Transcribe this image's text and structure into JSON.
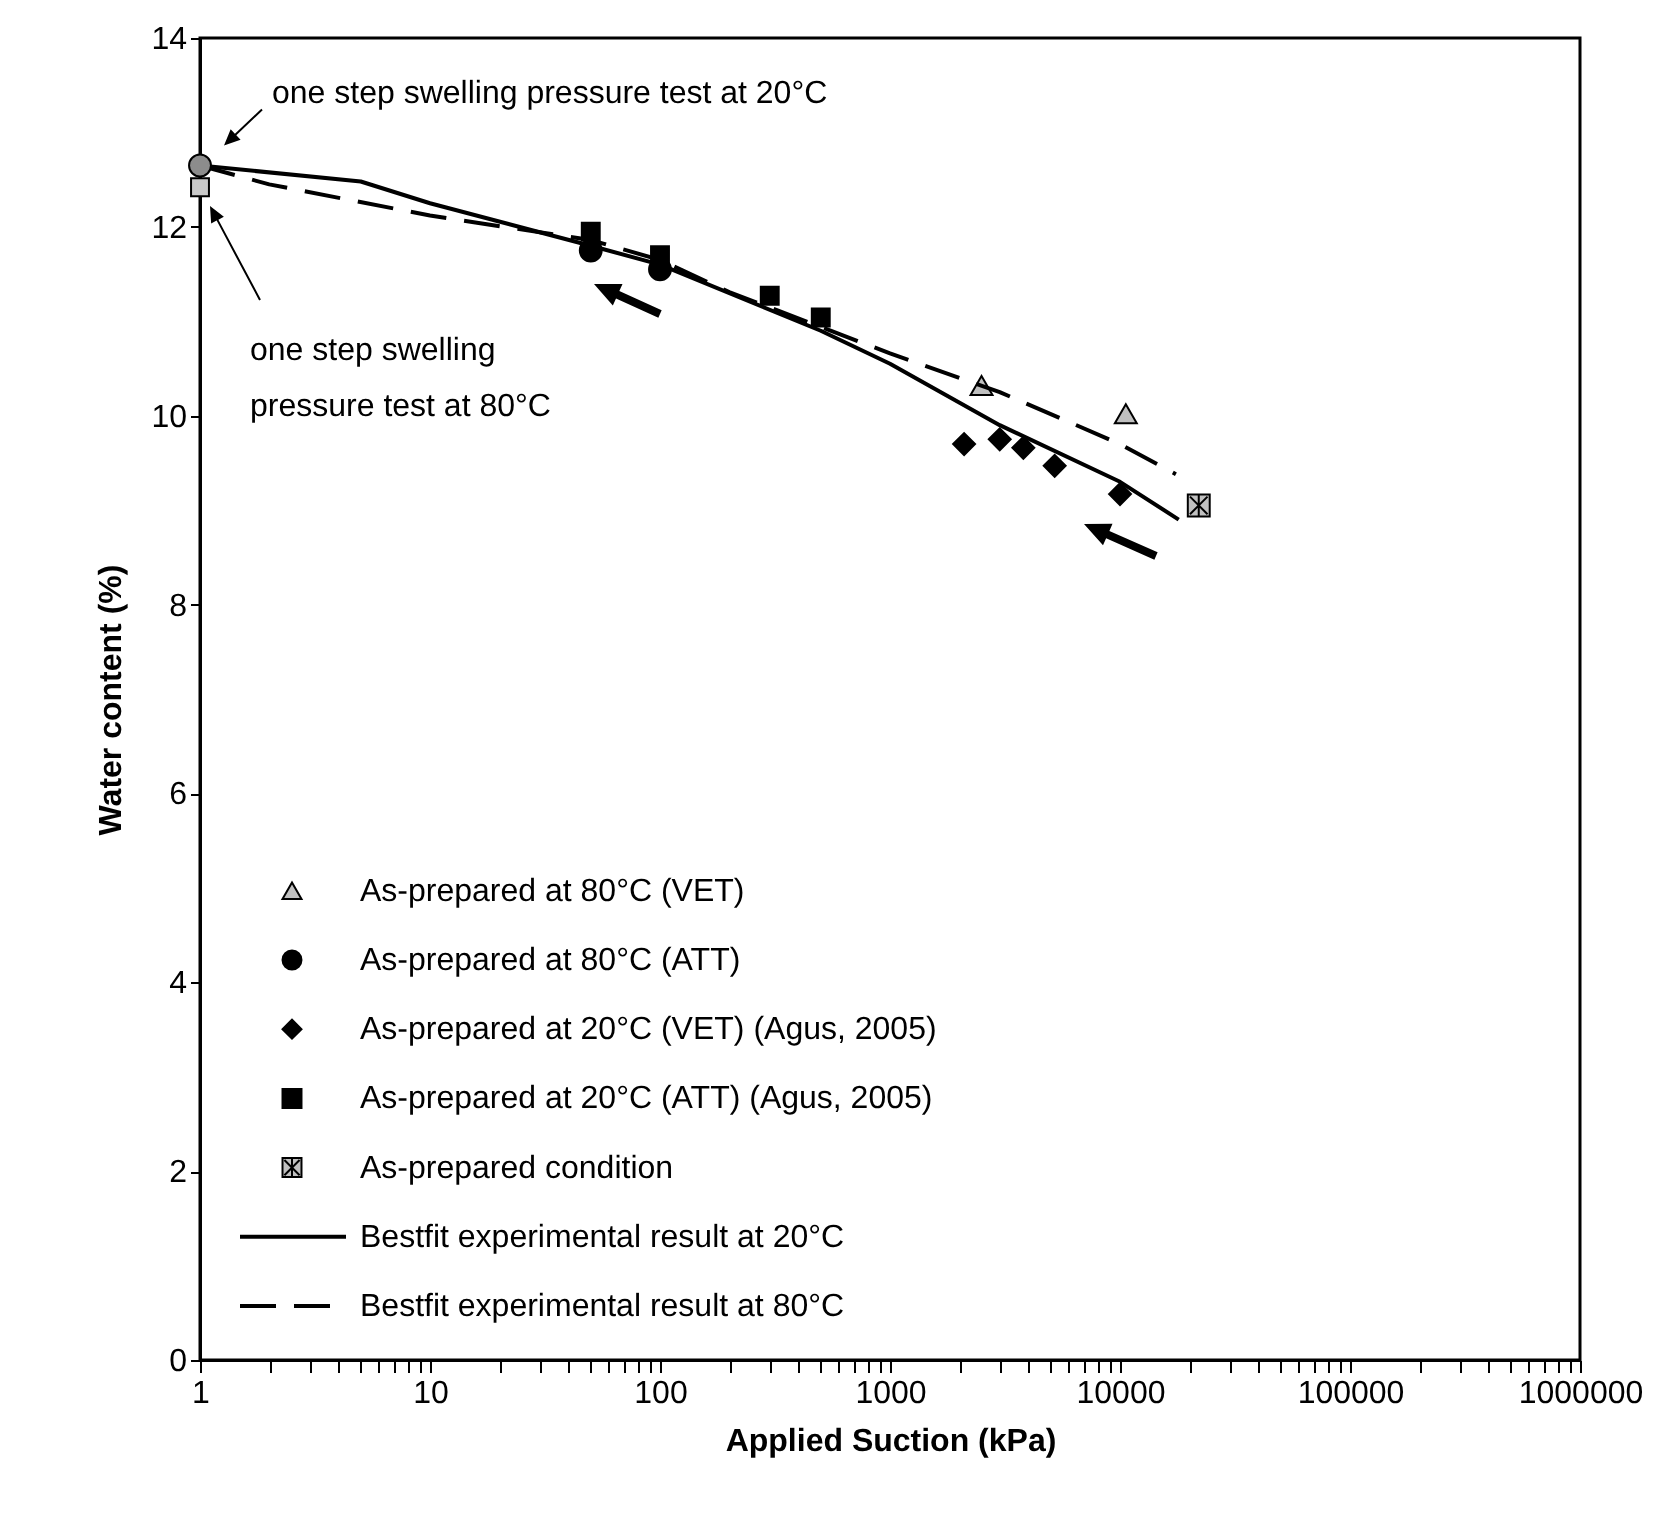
{
  "chart_data": {
    "type": "scatter",
    "xlabel": "Applied Suction (kPa)",
    "ylabel": "Water content (%)",
    "log": "x",
    "grid": false,
    "legend": "bottom left",
    "xlim": [
      1,
      1000000
    ],
    "ylim": [
      0,
      14
    ],
    "yticks": [
      0,
      2,
      4,
      6,
      8,
      10,
      12,
      14
    ],
    "xticks": [
      1,
      {
        "value": 2,
        "label": null
      },
      {
        "value": 3,
        "label": null
      },
      {
        "value": 4,
        "label": null
      },
      {
        "value": 5,
        "label": null
      },
      {
        "value": 6,
        "label": null
      },
      {
        "value": 7,
        "label": null
      },
      {
        "value": 8,
        "label": null
      },
      {
        "value": 9,
        "label": null
      },
      10,
      {
        "value": 20,
        "label": null
      },
      {
        "value": 30,
        "label": null
      },
      {
        "value": 40,
        "label": null
      },
      {
        "value": 50,
        "label": null
      },
      {
        "value": 60,
        "label": null
      },
      {
        "value": 70,
        "label": null
      },
      {
        "value": 80,
        "label": null
      },
      {
        "value": 90,
        "label": null
      },
      100,
      {
        "value": 200,
        "label": null
      },
      {
        "value": 300,
        "label": null
      },
      {
        "value": 400,
        "label": null
      },
      {
        "value": 500,
        "label": null
      },
      {
        "value": 600,
        "label": null
      },
      {
        "value": 700,
        "label": null
      },
      {
        "value": 800,
        "label": null
      },
      {
        "value": 900,
        "label": null
      },
      1000,
      {
        "value": 2000,
        "label": null
      },
      {
        "value": 3000,
        "label": null
      },
      {
        "value": 4000,
        "label": null
      },
      {
        "value": 5000,
        "label": null
      },
      {
        "value": 6000,
        "label": null
      },
      {
        "value": 7000,
        "label": null
      },
      {
        "value": 8000,
        "label": null
      },
      {
        "value": 9000,
        "label": null
      },
      10000,
      {
        "value": 20000,
        "label": null
      },
      {
        "value": 30000,
        "label": null
      },
      {
        "value": 40000,
        "label": null
      },
      {
        "value": 50000,
        "label": null
      },
      {
        "value": 60000,
        "label": null
      },
      {
        "value": 70000,
        "label": null
      },
      {
        "value": 80000,
        "label": null
      },
      {
        "value": 90000,
        "label": null
      },
      100000,
      {
        "value": 200000,
        "label": null
      },
      {
        "value": 300000,
        "label": null
      },
      {
        "value": 400000,
        "label": null
      },
      {
        "value": 500000,
        "label": null
      },
      {
        "value": 600000,
        "label": null
      },
      {
        "value": 700000,
        "label": null
      },
      {
        "value": 800000,
        "label": null
      },
      {
        "value": 900000,
        "label": null
      },
      1000000
    ],
    "series": [
      {
        "name": "As-prepared at 80°C (VET)",
        "marker": "triangle",
        "color": "#c0c0c0",
        "x": [
          2500,
          10600
        ],
        "values": [
          10.32,
          10.02
        ]
      },
      {
        "name": "As-prepared at 80°C (ATT)",
        "marker": "circle",
        "color": "#000000",
        "x": [
          50,
          100
        ],
        "values": [
          11.75,
          11.55
        ]
      },
      {
        "name": "As-prepared at 20°C (VET) (Agus, 2005)",
        "marker": "diamond",
        "color": "#000000",
        "x": [
          2100,
          3000,
          3800,
          5200,
          10000
        ],
        "values": [
          9.7,
          9.75,
          9.66,
          9.47,
          9.17
        ]
      },
      {
        "name": "As-prepared at 20°C (ATT)  (Agus, 2005)",
        "marker": "square",
        "color": "#000000",
        "x": [
          50,
          100,
          300,
          500
        ],
        "values": [
          11.95,
          11.7,
          11.27,
          11.04
        ]
      },
      {
        "name": "As-prepared condition",
        "marker": "cross",
        "color": "#c0c0c0",
        "x": [
          22000
        ],
        "values": [
          9.05
        ]
      },
      {
        "name": "Bestfit experimental result at 20°C",
        "type": "line",
        "line_style": "solid",
        "color": "#000000",
        "x": [
          1,
          5,
          10,
          50,
          100,
          500,
          1000,
          3000,
          10000,
          18000
        ],
        "values": [
          12.65,
          12.48,
          12.25,
          11.8,
          11.6,
          10.9,
          10.55,
          9.9,
          9.3,
          8.9
        ]
      },
      {
        "name": "Bestfit experimental result at 80°C",
        "type": "line",
        "line_style": "dashed",
        "color": "#000000",
        "x": [
          1,
          2,
          10,
          50,
          100,
          200,
          1000,
          3000,
          10000,
          17500
        ],
        "values": [
          12.65,
          12.45,
          12.12,
          11.86,
          11.65,
          11.31,
          10.66,
          10.25,
          9.7,
          9.38
        ]
      },
      {
        "marker": "circle",
        "color": "#8c8c8c",
        "x": [
          1
        ],
        "values": [
          12.65
        ]
      },
      {
        "marker": "square",
        "color": "#c8c8c8",
        "x": [
          1
        ],
        "values": [
          12.42
        ]
      }
    ],
    "annotations": [
      {
        "text": "one step swelling pressure test at 20°C",
        "x": 1,
        "y": 12.65
      },
      "one step swelling pressure test at 80°C"
    ]
  }
}
